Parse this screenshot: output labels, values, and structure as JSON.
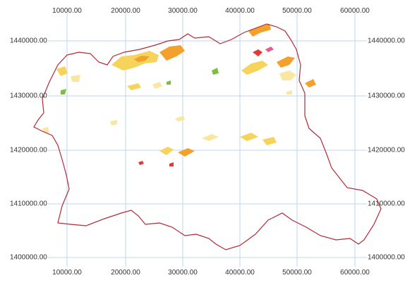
{
  "map": {
    "x_labels": [
      "10000.00",
      "20000.00",
      "30000.00",
      "40000.00",
      "50000.00",
      "60000.00"
    ],
    "y_labels": [
      "1440000.00",
      "1430000.00",
      "1420000.00",
      "1410000.00",
      "1400000.00"
    ],
    "colors": {
      "grid": "#bcd6ee",
      "boundary": "#b22a35",
      "patch_orange": "#f2a22c",
      "patch_yellow": "#f6d35b",
      "patch_light": "#f9e6a0",
      "patch_green": "#7fbf3f",
      "patch_red": "#e23a3a",
      "patch_pink": "#e65c8a"
    }
  }
}
